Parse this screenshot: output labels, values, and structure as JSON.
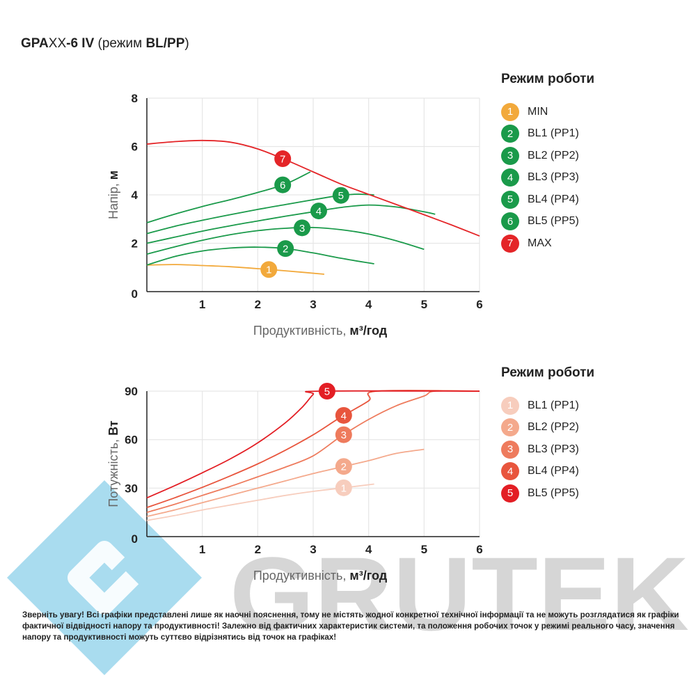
{
  "title": {
    "prefix": "GPA",
    "xx": "XX",
    "model": "-6 IV",
    "paren_open": " (режим ",
    "mode": "BL/PP",
    "paren_close": ")"
  },
  "brand": {
    "watermark_text": "GRUTEK",
    "logo_colors": [
      "#a9dcef",
      "#d6d6d6"
    ]
  },
  "chart_data": [
    {
      "type": "line",
      "ylabel_light": "Напір, ",
      "ylabel_bold": "м",
      "xlabel_light": "Продуктивність, ",
      "xlabel_bold": "м³/год",
      "xlim": [
        0,
        6
      ],
      "ylim": [
        0,
        8
      ],
      "xticks": [
        "1",
        "2",
        "3",
        "4",
        "5",
        "6"
      ],
      "yticks": [
        "2",
        "4",
        "6",
        "8"
      ],
      "origin_label": "0",
      "grid": true,
      "legend_title": "Режим роботи",
      "legend_position": "right",
      "series": [
        {
          "badge": "1",
          "name": "MIN",
          "color": "#f2a93b",
          "marker_x": 2.2,
          "points": [
            [
              0,
              1.1
            ],
            [
              0.5,
              1.12
            ],
            [
              1,
              1.08
            ],
            [
              1.5,
              1.03
            ],
            [
              2,
              0.95
            ],
            [
              2.5,
              0.86
            ],
            [
              3.2,
              0.72
            ]
          ]
        },
        {
          "badge": "2",
          "name": "BL1 (PP1)",
          "color": "#1a9a4a",
          "marker_x": 2.5,
          "points": [
            [
              0,
              1.1
            ],
            [
              0.5,
              1.45
            ],
            [
              1,
              1.68
            ],
            [
              1.5,
              1.8
            ],
            [
              2,
              1.84
            ],
            [
              2.5,
              1.78
            ],
            [
              3,
              1.6
            ],
            [
              3.5,
              1.38
            ],
            [
              4.1,
              1.15
            ]
          ]
        },
        {
          "badge": "3",
          "name": "BL2 (PP2)",
          "color": "#1a9a4a",
          "marker_x": 2.8,
          "points": [
            [
              0,
              1.55
            ],
            [
              0.5,
              1.85
            ],
            [
              1,
              2.12
            ],
            [
              1.5,
              2.35
            ],
            [
              2,
              2.52
            ],
            [
              2.5,
              2.62
            ],
            [
              3,
              2.65
            ],
            [
              3.5,
              2.56
            ],
            [
              4,
              2.38
            ],
            [
              4.5,
              2.1
            ],
            [
              5,
              1.75
            ]
          ]
        },
        {
          "badge": "4",
          "name": "BL3 (PP3)",
          "color": "#1a9a4a",
          "marker_x": 3.1,
          "points": [
            [
              0,
              2.0
            ],
            [
              0.5,
              2.25
            ],
            [
              1,
              2.5
            ],
            [
              1.5,
              2.72
            ],
            [
              2,
              2.92
            ],
            [
              2.5,
              3.12
            ],
            [
              3,
              3.3
            ],
            [
              3.5,
              3.48
            ],
            [
              4,
              3.58
            ],
            [
              4.5,
              3.5
            ],
            [
              5,
              3.3
            ],
            [
              5.2,
              3.2
            ]
          ]
        },
        {
          "badge": "5",
          "name": "BL4 (PP4)",
          "color": "#1a9a4a",
          "marker_x": 3.5,
          "points": [
            [
              0,
              2.4
            ],
            [
              0.5,
              2.7
            ],
            [
              1,
              2.95
            ],
            [
              1.5,
              3.18
            ],
            [
              2,
              3.4
            ],
            [
              2.5,
              3.6
            ],
            [
              3,
              3.8
            ],
            [
              3.5,
              3.98
            ],
            [
              3.8,
              4.03
            ],
            [
              4.1,
              4.0
            ]
          ]
        },
        {
          "badge": "6",
          "name": "BL5 (PP5)",
          "color": "#1a9a4a",
          "marker_x": 2.45,
          "points": [
            [
              0,
              2.85
            ],
            [
              0.5,
              3.2
            ],
            [
              1,
              3.52
            ],
            [
              1.5,
              3.8
            ],
            [
              2,
              4.1
            ],
            [
              2.5,
              4.45
            ],
            [
              2.95,
              4.95
            ]
          ]
        },
        {
          "badge": "7",
          "name": "MAX",
          "color": "#e42528",
          "marker_x": 2.45,
          "points": [
            [
              0,
              6.1
            ],
            [
              0.5,
              6.2
            ],
            [
              1,
              6.25
            ],
            [
              1.5,
              6.18
            ],
            [
              2,
              5.9
            ],
            [
              2.5,
              5.45
            ],
            [
              3,
              4.95
            ],
            [
              3.5,
              4.45
            ],
            [
              4,
              4.02
            ],
            [
              4.5,
              3.6
            ],
            [
              5,
              3.18
            ],
            [
              5.5,
              2.75
            ],
            [
              6,
              2.3
            ]
          ]
        }
      ]
    },
    {
      "type": "line",
      "ylabel_light": "Потужність, ",
      "ylabel_bold": "Вт",
      "xlabel_light": "Продуктивність, ",
      "xlabel_bold": "м³/год",
      "xlim": [
        0,
        6
      ],
      "ylim": [
        0,
        90
      ],
      "xticks": [
        "1",
        "2",
        "3",
        "4",
        "5",
        "6"
      ],
      "yticks": [
        "30",
        "60",
        "90"
      ],
      "origin_label": "0",
      "grid": true,
      "legend_title": "Режим роботи",
      "legend_position": "right",
      "series": [
        {
          "badge": "1",
          "name": "BL1 (PP1)",
          "color": "#f7cdbd",
          "marker_x": 3.55,
          "points": [
            [
              0,
              10
            ],
            [
              0.5,
              13
            ],
            [
              1,
              16.5
            ],
            [
              1.5,
              19.5
            ],
            [
              2,
              22.5
            ],
            [
              2.5,
              25.5
            ],
            [
              3,
              28
            ],
            [
              3.5,
              30
            ],
            [
              4.1,
              32.5
            ]
          ]
        },
        {
          "badge": "2",
          "name": "BL2 (PP2)",
          "color": "#f4a98c",
          "marker_x": 3.55,
          "points": [
            [
              0,
              12.5
            ],
            [
              0.5,
              16.5
            ],
            [
              1,
              21
            ],
            [
              1.5,
              25.5
            ],
            [
              2,
              30
            ],
            [
              2.5,
              34.5
            ],
            [
              3,
              39
            ],
            [
              3.5,
              43
            ],
            [
              4,
              47
            ],
            [
              4.5,
              51.5
            ],
            [
              5,
              54
            ]
          ]
        },
        {
          "badge": "3",
          "name": "BL3 (PP3)",
          "color": "#ee7b5d",
          "marker_x": 3.55,
          "points": [
            [
              0,
              15
            ],
            [
              0.5,
              20
            ],
            [
              1,
              25.5
            ],
            [
              1.5,
              31
            ],
            [
              2,
              37
            ],
            [
              2.5,
              43
            ],
            [
              3,
              50
            ],
            [
              3.5,
              62
            ],
            [
              4,
              72.5
            ],
            [
              4.5,
              81
            ],
            [
              5,
              87
            ],
            [
              5.2,
              90
            ],
            [
              6,
              90
            ]
          ]
        },
        {
          "badge": "4",
          "name": "BL4 (PP4)",
          "color": "#e8553d",
          "marker_x": 3.55,
          "points": [
            [
              0,
              18
            ],
            [
              0.5,
              24
            ],
            [
              1,
              30.5
            ],
            [
              1.5,
              37.5
            ],
            [
              2,
              45
            ],
            [
              2.5,
              53.5
            ],
            [
              3,
              63
            ],
            [
              3.5,
              74
            ],
            [
              4,
              84
            ],
            [
              4.15,
              90
            ],
            [
              6,
              90
            ]
          ]
        },
        {
          "badge": "5",
          "name": "BL5 (PP5)",
          "color": "#e31e24",
          "marker_x": 3.25,
          "points": [
            [
              0,
              24
            ],
            [
              0.5,
              31.5
            ],
            [
              1,
              39.5
            ],
            [
              1.5,
              48
            ],
            [
              2,
              58
            ],
            [
              2.5,
              70.5
            ],
            [
              2.8,
              80
            ],
            [
              3,
              88
            ],
            [
              3.1,
              90
            ],
            [
              6,
              90
            ]
          ]
        }
      ]
    }
  ],
  "note": "Зверніть увагу! Всі графіки представлені лише як наочні пояснення, тому не містять жодної конкретної технічної інформації та не можуть розглядатися як графіки фактичної відвідності напору та продуктивності! Залежно від фактичних характеристик системи, та положення робочих точок у режимі реального часу, значення напору та продуктивності можуть суттєво відрізнятись від точок на графіках!"
}
